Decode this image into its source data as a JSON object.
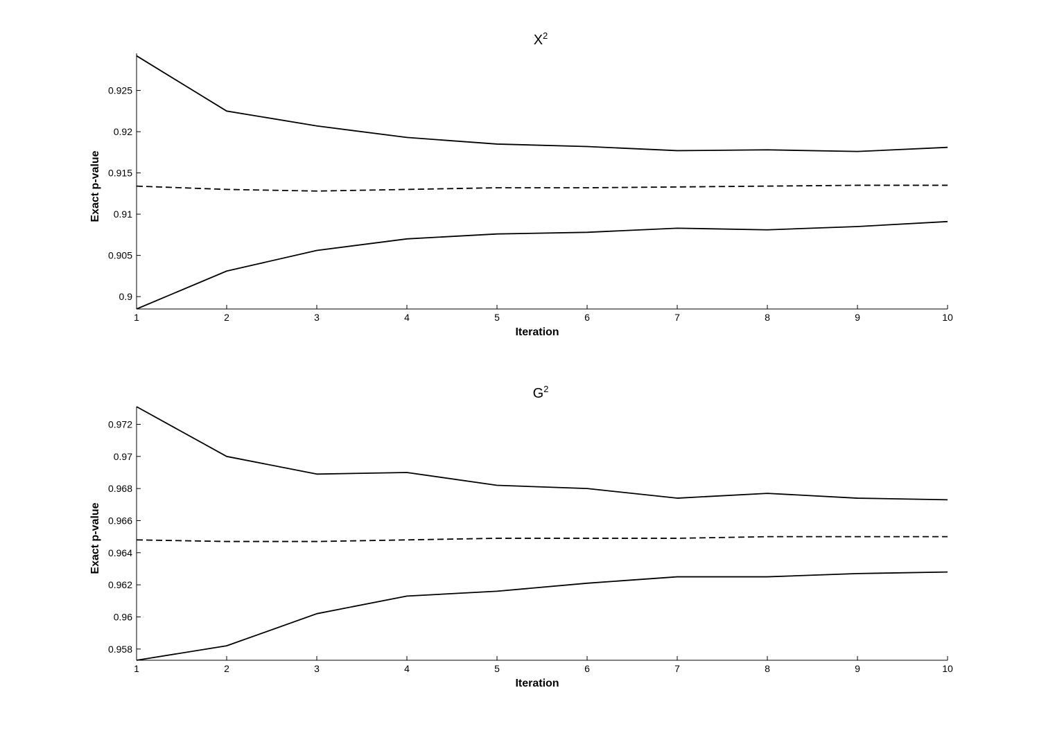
{
  "chart_data": [
    {
      "type": "line",
      "title": "X",
      "title_superscript": "2",
      "xlabel": "Iteration",
      "ylabel": "Exact p-value",
      "x": [
        1,
        2,
        3,
        4,
        5,
        6,
        7,
        8,
        9,
        10
      ],
      "xlim": [
        1,
        10
      ],
      "ylim": [
        0.8985,
        0.9295
      ],
      "xticks": [
        "1",
        "2",
        "3",
        "4",
        "5",
        "6",
        "7",
        "8",
        "9",
        "10"
      ],
      "yticks": [
        "0.9",
        "0.905",
        "0.91",
        "0.915",
        "0.92",
        "0.925"
      ],
      "ytick_values": [
        0.9,
        0.905,
        0.91,
        0.915,
        0.92,
        0.925
      ],
      "grid": false,
      "series": [
        {
          "style": "solid",
          "values": [
            0.9292,
            0.9225,
            0.9207,
            0.9193,
            0.9185,
            0.9182,
            0.9177,
            0.9178,
            0.9176,
            0.9181
          ]
        },
        {
          "style": "dashed",
          "values": [
            0.9134,
            0.913,
            0.9128,
            0.913,
            0.9132,
            0.9132,
            0.9133,
            0.9134,
            0.9135,
            0.9135
          ]
        },
        {
          "style": "solid",
          "values": [
            0.8985,
            0.9031,
            0.9056,
            0.907,
            0.9076,
            0.9078,
            0.9083,
            0.9081,
            0.9085,
            0.9091
          ]
        }
      ]
    },
    {
      "type": "line",
      "title": "G",
      "title_superscript": "2",
      "xlabel": "Iteration",
      "ylabel": "Exact p-value",
      "x": [
        1,
        2,
        3,
        4,
        5,
        6,
        7,
        8,
        9,
        10
      ],
      "xlim": [
        1,
        10
      ],
      "ylim": [
        0.9573,
        0.9731
      ],
      "xticks": [
        "1",
        "2",
        "3",
        "4",
        "5",
        "6",
        "7",
        "8",
        "9",
        "10"
      ],
      "yticks": [
        "0.958",
        "0.96",
        "0.962",
        "0.964",
        "0.966",
        "0.968",
        "0.97",
        "0.972"
      ],
      "ytick_values": [
        0.958,
        0.96,
        0.962,
        0.964,
        0.966,
        0.968,
        0.97,
        0.972
      ],
      "grid": false,
      "series": [
        {
          "style": "solid",
          "values": [
            0.9731,
            0.97,
            0.9689,
            0.969,
            0.9682,
            0.968,
            0.9674,
            0.9677,
            0.9674,
            0.9673
          ]
        },
        {
          "style": "dashed",
          "values": [
            0.9648,
            0.9647,
            0.9647,
            0.9648,
            0.9649,
            0.9649,
            0.9649,
            0.965,
            0.965,
            0.965
          ]
        },
        {
          "style": "solid",
          "values": [
            0.9573,
            0.9582,
            0.9602,
            0.9613,
            0.9616,
            0.9621,
            0.9625,
            0.9625,
            0.9627,
            0.9628
          ]
        }
      ]
    }
  ]
}
